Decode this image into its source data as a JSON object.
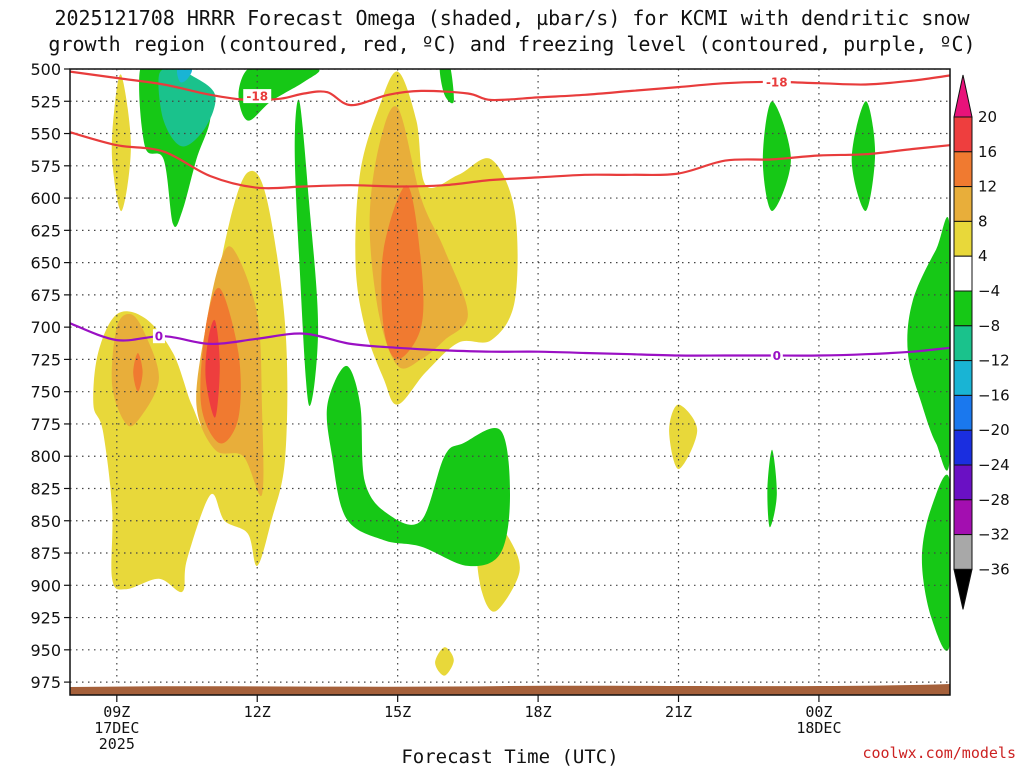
{
  "chart_data": {
    "type": "heatmap",
    "title_line1": "2025121708 HRRR Forecast Omega (shaded, µbar/s) for KCMI with dendritic snow",
    "title_line2": "growth region (contoured, red, ºC) and freezing level (contoured, purple, ºC)",
    "xlabel": "Forecast Time (UTC)",
    "credit": "coolwx.com/models",
    "y_axis": {
      "ticks": [
        "500",
        "525",
        "550",
        "575",
        "600",
        "625",
        "650",
        "675",
        "700",
        "725",
        "750",
        "775",
        "800",
        "825",
        "850",
        "875",
        "900",
        "925",
        "950",
        "975"
      ],
      "range": [
        500,
        985
      ]
    },
    "x_axis": {
      "range": [
        8.0,
        26.8
      ],
      "ticks": [
        {
          "hour": 9,
          "lines": [
            "09Z",
            "17DEC",
            "2025"
          ]
        },
        {
          "hour": 12,
          "lines": [
            "12Z"
          ]
        },
        {
          "hour": 15,
          "lines": [
            "15Z"
          ]
        },
        {
          "hour": 18,
          "lines": [
            "18Z"
          ]
        },
        {
          "hour": 21,
          "lines": [
            "21Z"
          ]
        },
        {
          "hour": 24,
          "lines": [
            "00Z",
            "18DEC"
          ]
        }
      ]
    },
    "colorbar": {
      "levels": [
        20,
        16,
        12,
        8,
        4,
        -4,
        -8,
        -12,
        -16,
        -20,
        -24,
        -28,
        -32,
        -36
      ],
      "labels": [
        "20",
        "16",
        "12",
        "8",
        "4",
        "−4",
        "−8",
        "−12",
        "−16",
        "−20",
        "−24",
        "−28",
        "−32",
        "−36"
      ],
      "colors": [
        "#e8127a",
        "#ee3e3e",
        "#f07a30",
        "#e8ae3a",
        "#e8d83a",
        "#ffffff",
        "#16c816",
        "#1ac28c",
        "#19b4d4",
        "#1a78ee",
        "#1a2ee0",
        "#6a10c4",
        "#a30eb0",
        "#a8a8a8",
        "#000000"
      ]
    },
    "contours": {
      "snow_growth_upper": {
        "color": "#e83c3c",
        "label": "-18",
        "points": [
          [
            8.0,
            502
          ],
          [
            9,
            507
          ],
          [
            10,
            512
          ],
          [
            11,
            520
          ],
          [
            11.8,
            524
          ],
          [
            12.5,
            523
          ],
          [
            13,
            519
          ],
          [
            13.5,
            518
          ],
          [
            14,
            528
          ],
          [
            14.8,
            520
          ],
          [
            15.5,
            517
          ],
          [
            16.5,
            519
          ],
          [
            17,
            524
          ],
          [
            18,
            522
          ],
          [
            19,
            520
          ],
          [
            20,
            517
          ],
          [
            21,
            514
          ],
          [
            22,
            511
          ],
          [
            23,
            510
          ],
          [
            24,
            511
          ],
          [
            25,
            512
          ],
          [
            26,
            509
          ],
          [
            26.8,
            505
          ]
        ]
      },
      "snow_growth_lower": {
        "color": "#e83c3c",
        "points": [
          [
            8.0,
            549
          ],
          [
            9,
            559
          ],
          [
            10,
            564
          ],
          [
            11,
            583
          ],
          [
            12,
            592
          ],
          [
            13,
            591
          ],
          [
            14,
            590
          ],
          [
            15,
            591
          ],
          [
            16,
            590
          ],
          [
            17,
            586
          ],
          [
            18,
            584
          ],
          [
            19,
            582
          ],
          [
            20,
            582
          ],
          [
            21,
            581
          ],
          [
            22,
            571
          ],
          [
            23,
            570
          ],
          [
            24,
            567
          ],
          [
            25,
            566
          ],
          [
            26,
            562
          ],
          [
            26.8,
            559
          ]
        ]
      },
      "freezing_level": {
        "color": "#9a10c4",
        "label": "0",
        "points": [
          [
            8.0,
            697
          ],
          [
            9,
            710
          ],
          [
            10,
            707
          ],
          [
            11,
            713
          ],
          [
            12,
            709
          ],
          [
            13,
            705
          ],
          [
            14,
            713
          ],
          [
            15,
            716
          ],
          [
            16,
            718
          ],
          [
            17,
            719
          ],
          [
            18,
            719
          ],
          [
            19,
            720
          ],
          [
            20,
            721
          ],
          [
            21,
            722
          ],
          [
            22,
            722
          ],
          [
            23,
            722
          ],
          [
            24,
            722
          ],
          [
            25,
            721
          ],
          [
            26,
            719
          ],
          [
            26.8,
            716
          ]
        ]
      }
    },
    "contour_labels": [
      {
        "text": "-18",
        "x": 12.0,
        "p": 521,
        "color": "#e83c3c"
      },
      {
        "text": "-18",
        "x": 23.1,
        "p": 510,
        "color": "#e83c3c"
      },
      {
        "text": "0",
        "x": 9.9,
        "p": 707,
        "color": "#9a10c4"
      },
      {
        "text": "0",
        "x": 23.1,
        "p": 722,
        "color": "#9a10c4"
      }
    ],
    "omega_regions": [
      {
        "level": 4,
        "color": "#e8d83a",
        "points": [
          [
            9.6,
            693
          ],
          [
            10.2,
            720
          ],
          [
            10.6,
            760
          ],
          [
            10.9,
            775
          ],
          [
            11.0,
            700
          ],
          [
            11.4,
            620
          ],
          [
            11.8,
            580
          ],
          [
            12.2,
            600
          ],
          [
            12.6,
            700
          ],
          [
            12.6,
            800
          ],
          [
            12.3,
            850
          ],
          [
            12.0,
            885
          ],
          [
            11.8,
            860
          ],
          [
            11.3,
            850
          ],
          [
            11.0,
            830
          ],
          [
            10.5,
            880
          ],
          [
            10.4,
            905
          ],
          [
            9.9,
            895
          ],
          [
            9.2,
            903
          ],
          [
            8.9,
            895
          ],
          [
            8.9,
            840
          ],
          [
            8.7,
            780
          ],
          [
            8.5,
            760
          ],
          [
            8.6,
            720
          ],
          [
            9.0,
            690
          ]
        ]
      },
      {
        "level": 4,
        "color": "#e8d83a",
        "points": [
          [
            9.1,
            505
          ],
          [
            9.3,
            560
          ],
          [
            9.1,
            610
          ],
          [
            8.9,
            570
          ],
          [
            8.95,
            530
          ]
        ]
      },
      {
        "level": 4,
        "color": "#e8d83a",
        "points": [
          [
            15.0,
            502
          ],
          [
            15.4,
            540
          ],
          [
            15.6,
            590
          ],
          [
            16.3,
            582
          ],
          [
            17.0,
            570
          ],
          [
            17.5,
            610
          ],
          [
            17.5,
            680
          ],
          [
            17.0,
            710
          ],
          [
            16.3,
            712
          ],
          [
            15.6,
            735
          ],
          [
            15.0,
            760
          ],
          [
            14.7,
            740
          ],
          [
            14.3,
            700
          ],
          [
            14.1,
            650
          ],
          [
            14.2,
            580
          ],
          [
            14.6,
            530
          ]
        ]
      },
      {
        "level": 4,
        "color": "#e8d83a",
        "points": [
          [
            17.0,
            850
          ],
          [
            17.4,
            865
          ],
          [
            17.6,
            890
          ],
          [
            17.1,
            920
          ],
          [
            16.8,
            905
          ],
          [
            16.7,
            870
          ]
        ]
      },
      {
        "level": 4,
        "color": "#e8d83a",
        "points": [
          [
            21.0,
            760
          ],
          [
            21.4,
            780
          ],
          [
            21.0,
            810
          ],
          [
            20.8,
            780
          ]
        ]
      },
      {
        "level": 4,
        "color": "#e8d83a",
        "points": [
          [
            16.0,
            948
          ],
          [
            16.2,
            958
          ],
          [
            16.0,
            970
          ],
          [
            15.8,
            960
          ]
        ]
      },
      {
        "level": 8,
        "color": "#e8ae3a",
        "points": [
          [
            9.9,
            740
          ],
          [
            9.5,
            770
          ],
          [
            9.2,
            775
          ],
          [
            8.9,
            745
          ],
          [
            9.0,
            700
          ],
          [
            9.3,
            690
          ],
          [
            9.6,
            705
          ]
        ]
      },
      {
        "level": 8,
        "color": "#e8ae3a",
        "points": [
          [
            11.5,
            640
          ],
          [
            12.0,
            690
          ],
          [
            12.1,
            760
          ],
          [
            12.1,
            830
          ],
          [
            11.7,
            800
          ],
          [
            11.1,
            795
          ],
          [
            10.7,
            760
          ],
          [
            10.9,
            700
          ],
          [
            11.2,
            650
          ]
        ]
      },
      {
        "level": 8,
        "color": "#e8ae3a",
        "points": [
          [
            15.0,
            530
          ],
          [
            15.5,
            600
          ],
          [
            16.0,
            640
          ],
          [
            16.5,
            690
          ],
          [
            16.0,
            710
          ],
          [
            15.5,
            725
          ],
          [
            15.0,
            730
          ],
          [
            14.6,
            690
          ],
          [
            14.4,
            620
          ],
          [
            14.6,
            560
          ]
        ]
      },
      {
        "level": 12,
        "color": "#f07a30",
        "points": [
          [
            9.45,
            720
          ],
          [
            9.55,
            735
          ],
          [
            9.45,
            750
          ],
          [
            9.35,
            735
          ]
        ]
      },
      {
        "level": 12,
        "color": "#f07a30",
        "points": [
          [
            11.2,
            670
          ],
          [
            11.6,
            720
          ],
          [
            11.6,
            770
          ],
          [
            11.2,
            790
          ],
          [
            10.8,
            760
          ],
          [
            10.9,
            700
          ]
        ]
      },
      {
        "level": 12,
        "color": "#f07a30",
        "points": [
          [
            15.2,
            590
          ],
          [
            15.5,
            650
          ],
          [
            15.5,
            700
          ],
          [
            15.0,
            725
          ],
          [
            14.7,
            700
          ],
          [
            14.7,
            640
          ]
        ]
      },
      {
        "level": 16,
        "color": "#ee3e3e",
        "points": [
          [
            11.1,
            695
          ],
          [
            11.2,
            730
          ],
          [
            11.1,
            770
          ],
          [
            10.9,
            740
          ],
          [
            10.95,
            710
          ]
        ]
      },
      {
        "level": -4,
        "color": "#16c816",
        "points": [
          [
            10.0,
            500
          ],
          [
            10.6,
            510
          ],
          [
            11.0,
            535
          ],
          [
            10.7,
            570
          ],
          [
            10.4,
            610
          ],
          [
            10.2,
            620
          ],
          [
            10.0,
            570
          ],
          [
            9.6,
            560
          ],
          [
            9.5,
            500
          ]
        ]
      },
      {
        "level": -4,
        "color": "#16c816",
        "points": [
          [
            11.8,
            500
          ],
          [
            12.3,
            500
          ],
          [
            13.3,
            500
          ],
          [
            13.0,
            510
          ],
          [
            12.3,
            525
          ],
          [
            11.8,
            540
          ],
          [
            11.6,
            520
          ]
        ]
      },
      {
        "level": -4,
        "color": "#16c816",
        "points": [
          [
            12.9,
            525
          ],
          [
            13.1,
            600
          ],
          [
            13.3,
            700
          ],
          [
            13.1,
            760
          ],
          [
            12.9,
            650
          ],
          [
            12.8,
            560
          ]
        ]
      },
      {
        "level": -4,
        "color": "#16c816",
        "points": [
          [
            13.9,
            730
          ],
          [
            14.2,
            760
          ],
          [
            14.3,
            820
          ],
          [
            14.8,
            845
          ],
          [
            15.5,
            850
          ],
          [
            16.0,
            800
          ],
          [
            16.4,
            790
          ],
          [
            17.2,
            780
          ],
          [
            17.4,
            830
          ],
          [
            17.2,
            875
          ],
          [
            16.5,
            885
          ],
          [
            15.5,
            870
          ],
          [
            14.7,
            865
          ],
          [
            13.9,
            848
          ],
          [
            13.6,
            800
          ],
          [
            13.5,
            760
          ]
        ]
      },
      {
        "level": -4,
        "color": "#16c816",
        "points": [
          [
            16.1,
            495
          ],
          [
            16.2,
            525
          ],
          [
            16.0,
            520
          ],
          [
            15.9,
            498
          ]
        ]
      },
      {
        "level": -4,
        "color": "#16c816",
        "points": [
          [
            23.0,
            525
          ],
          [
            23.4,
            570
          ],
          [
            23.0,
            610
          ],
          [
            22.8,
            570
          ]
        ]
      },
      {
        "level": -4,
        "color": "#16c816",
        "points": [
          [
            25.0,
            525
          ],
          [
            25.2,
            565
          ],
          [
            25.0,
            610
          ],
          [
            24.7,
            570
          ]
        ]
      },
      {
        "level": -4,
        "color": "#16c816",
        "points": [
          [
            23.0,
            795
          ],
          [
            23.1,
            830
          ],
          [
            22.95,
            855
          ],
          [
            22.9,
            825
          ]
        ]
      },
      {
        "level": -4,
        "color": "#16c816",
        "points": [
          [
            26.8,
            625
          ],
          [
            26.5,
            640
          ],
          [
            26.0,
            680
          ],
          [
            25.9,
            720
          ],
          [
            26.2,
            760
          ],
          [
            26.5,
            790
          ],
          [
            26.8,
            800
          ]
        ]
      },
      {
        "level": -4,
        "color": "#16c816",
        "points": [
          [
            26.8,
            820
          ],
          [
            26.4,
            840
          ],
          [
            26.2,
            880
          ],
          [
            26.4,
            925
          ],
          [
            26.8,
            945
          ]
        ]
      },
      {
        "level": -8,
        "color": "#1ac28c",
        "points": [
          [
            10.2,
            500
          ],
          [
            10.6,
            505
          ],
          [
            11.1,
            520
          ],
          [
            10.9,
            545
          ],
          [
            10.4,
            560
          ],
          [
            10.0,
            540
          ],
          [
            9.9,
            505
          ]
        ]
      },
      {
        "level": -12,
        "color": "#19b4d4",
        "points": [
          [
            10.3,
            500
          ],
          [
            10.6,
            500
          ],
          [
            10.5,
            508
          ],
          [
            10.35,
            510
          ]
        ]
      }
    ]
  }
}
